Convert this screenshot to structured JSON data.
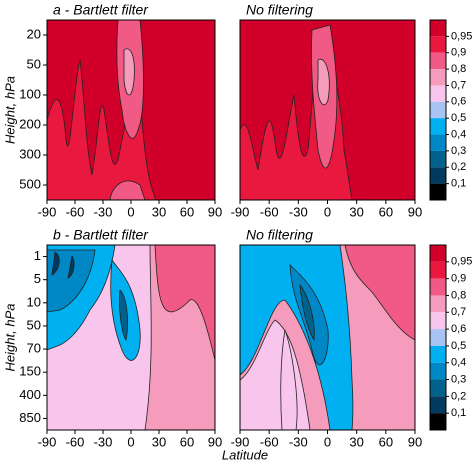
{
  "chart_data": [
    {
      "type": "contour",
      "title": "a - Bartlett filter",
      "ylabel": "Height, hPa",
      "xlim": [
        -90,
        90
      ],
      "xticks": [
        -90,
        -60,
        -30,
        0,
        30,
        60,
        90
      ],
      "ycategories": [
        20,
        50,
        100,
        200,
        300,
        500
      ]
    },
    {
      "type": "contour",
      "title": "No filtering",
      "xlim": [
        -90,
        90
      ],
      "xticks": [
        -90,
        -60,
        -30,
        0,
        30,
        60,
        90
      ],
      "colorbar": {
        "ticks": [
          {
            "value": 0.95,
            "label": "0,95"
          },
          {
            "value": 0.9,
            "label": "0,9"
          },
          {
            "value": 0.8,
            "label": "0,8"
          },
          {
            "value": 0.7,
            "label": "0,7"
          },
          {
            "value": 0.6,
            "label": "0,6"
          },
          {
            "value": 0.5,
            "label": "0,5"
          },
          {
            "value": 0.4,
            "label": "0,4"
          },
          {
            "value": 0.3,
            "label": "0,3"
          },
          {
            "value": 0.2,
            "label": "0,2"
          },
          {
            "value": 0.1,
            "label": "0,1"
          }
        ],
        "colors": [
          "#d0002a",
          "#e8183f",
          "#f05a84",
          "#f59cbc",
          "#f8c6ec",
          "#a9c4f2",
          "#00b0f0",
          "#0088c6",
          "#00628c",
          "#003a5c",
          "#000000"
        ]
      }
    },
    {
      "type": "contour",
      "title": "b - Bartlett filter",
      "ylabel": "Height, hPa",
      "xlim": [
        -90,
        90
      ],
      "xticks": [
        -90,
        -60,
        -30,
        0,
        30,
        60,
        90
      ],
      "ycategories": [
        1,
        5,
        10,
        50,
        70,
        150,
        400,
        850
      ]
    },
    {
      "type": "contour",
      "title": "No filtering",
      "xlim": [
        -90,
        90
      ],
      "xticks": [
        -90,
        -60,
        -30,
        0,
        30,
        60,
        90
      ],
      "colorbar": {
        "ticks": [
          {
            "value": 0.95,
            "label": "0,95"
          },
          {
            "value": 0.9,
            "label": "0,9"
          },
          {
            "value": 0.8,
            "label": "0,8"
          },
          {
            "value": 0.7,
            "label": "0,7"
          },
          {
            "value": 0.6,
            "label": "0,6"
          },
          {
            "value": 0.5,
            "label": "0,5"
          },
          {
            "value": 0.4,
            "label": "0,4"
          },
          {
            "value": 0.3,
            "label": "0,3"
          },
          {
            "value": 0.2,
            "label": "0,2"
          },
          {
            "value": 0.1,
            "label": "0,1"
          }
        ],
        "colors": [
          "#d0002a",
          "#e8183f",
          "#f05a84",
          "#f59cbc",
          "#f8c6ec",
          "#a9c4f2",
          "#00b0f0",
          "#0088c6",
          "#00628c",
          "#003a5c",
          "#000000"
        ]
      }
    }
  ],
  "figure": {
    "xlabel": "Latitude"
  }
}
